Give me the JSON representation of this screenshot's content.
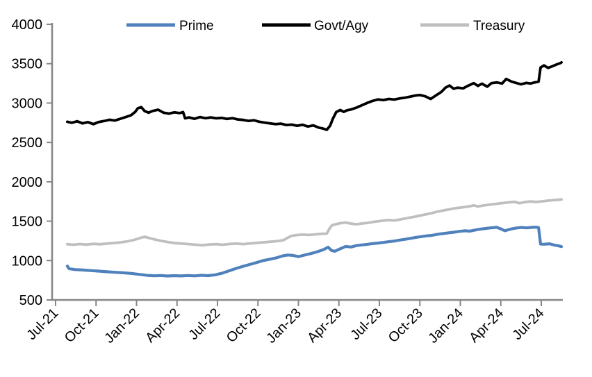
{
  "chart_data": {
    "type": "line",
    "title": "",
    "legend_position": "top",
    "grid": false,
    "axis_color": "#868686",
    "ylim": [
      500,
      4000
    ],
    "y_ticks": [
      500,
      1000,
      1500,
      2000,
      2500,
      3000,
      3500,
      4000
    ],
    "x_ticks": [
      {
        "t": 0,
        "label": "Jul-21"
      },
      {
        "t": 3,
        "label": "Oct-21"
      },
      {
        "t": 6,
        "label": "Jan-22"
      },
      {
        "t": 9,
        "label": "Apr-22"
      },
      {
        "t": 12,
        "label": "Jul-22"
      },
      {
        "t": 15,
        "label": "Oct-22"
      },
      {
        "t": 18,
        "label": "Jan-23"
      },
      {
        "t": 21,
        "label": "Apr-23"
      },
      {
        "t": 24,
        "label": "Jul-23"
      },
      {
        "t": 27,
        "label": "Oct-23"
      },
      {
        "t": 30,
        "label": "Jan-24"
      },
      {
        "t": 33,
        "label": "Apr-24"
      },
      {
        "t": 36,
        "label": "Jul-24"
      }
    ],
    "x_unit": "months since Jul-2021",
    "series": [
      {
        "name": "Prime",
        "color": "#4f81bd",
        "width": 4.2,
        "points": [
          [
            0.87,
            930
          ],
          [
            1.0,
            898
          ],
          [
            1.4,
            886
          ],
          [
            2.0,
            880
          ],
          [
            2.6,
            873
          ],
          [
            3.2,
            866
          ],
          [
            3.8,
            858
          ],
          [
            4.4,
            851
          ],
          [
            5.0,
            845
          ],
          [
            5.6,
            837
          ],
          [
            6.2,
            824
          ],
          [
            6.8,
            812
          ],
          [
            7.3,
            807
          ],
          [
            7.8,
            810
          ],
          [
            8.3,
            804
          ],
          [
            8.8,
            809
          ],
          [
            9.3,
            805
          ],
          [
            9.8,
            810
          ],
          [
            10.3,
            806
          ],
          [
            10.8,
            813
          ],
          [
            11.3,
            809
          ],
          [
            11.8,
            818
          ],
          [
            12.3,
            838
          ],
          [
            12.8,
            866
          ],
          [
            13.3,
            896
          ],
          [
            13.8,
            922
          ],
          [
            14.3,
            946
          ],
          [
            14.8,
            970
          ],
          [
            15.3,
            996
          ],
          [
            15.8,
            1014
          ],
          [
            16.3,
            1032
          ],
          [
            16.8,
            1058
          ],
          [
            17.2,
            1070
          ],
          [
            17.6,
            1065
          ],
          [
            18.0,
            1050
          ],
          [
            18.4,
            1068
          ],
          [
            18.9,
            1088
          ],
          [
            19.4,
            1112
          ],
          [
            19.9,
            1142
          ],
          [
            20.2,
            1170
          ],
          [
            20.45,
            1128
          ],
          [
            20.7,
            1118
          ],
          [
            21.1,
            1150
          ],
          [
            21.5,
            1180
          ],
          [
            21.9,
            1172
          ],
          [
            22.3,
            1190
          ],
          [
            22.7,
            1198
          ],
          [
            23.1,
            1206
          ],
          [
            23.5,
            1216
          ],
          [
            23.9,
            1222
          ],
          [
            24.3,
            1230
          ],
          [
            24.7,
            1240
          ],
          [
            25.1,
            1248
          ],
          [
            25.5,
            1260
          ],
          [
            25.9,
            1270
          ],
          [
            26.3,
            1282
          ],
          [
            26.7,
            1294
          ],
          [
            27.1,
            1304
          ],
          [
            27.5,
            1314
          ],
          [
            27.9,
            1320
          ],
          [
            28.3,
            1334
          ],
          [
            28.7,
            1342
          ],
          [
            29.1,
            1352
          ],
          [
            29.5,
            1360
          ],
          [
            29.9,
            1370
          ],
          [
            30.3,
            1378
          ],
          [
            30.7,
            1374
          ],
          [
            31.1,
            1388
          ],
          [
            31.5,
            1400
          ],
          [
            31.9,
            1408
          ],
          [
            32.3,
            1416
          ],
          [
            32.7,
            1422
          ],
          [
            33.0,
            1402
          ],
          [
            33.3,
            1378
          ],
          [
            33.7,
            1398
          ],
          [
            34.1,
            1412
          ],
          [
            34.5,
            1420
          ],
          [
            34.9,
            1415
          ],
          [
            35.3,
            1421
          ],
          [
            35.6,
            1424
          ],
          [
            35.8,
            1419
          ],
          [
            35.95,
            1210
          ],
          [
            36.2,
            1207
          ],
          [
            36.6,
            1213
          ],
          [
            37.0,
            1196
          ],
          [
            37.3,
            1186
          ],
          [
            37.5,
            1177
          ]
        ]
      },
      {
        "name": "Govt/Agy",
        "color": "#000000",
        "width": 3.8,
        "points": [
          [
            0.87,
            2762
          ],
          [
            1.2,
            2750
          ],
          [
            1.6,
            2768
          ],
          [
            2.0,
            2742
          ],
          [
            2.4,
            2758
          ],
          [
            2.8,
            2732
          ],
          [
            3.2,
            2760
          ],
          [
            3.6,
            2772
          ],
          [
            4.0,
            2788
          ],
          [
            4.4,
            2778
          ],
          [
            4.8,
            2800
          ],
          [
            5.2,
            2822
          ],
          [
            5.6,
            2846
          ],
          [
            5.9,
            2888
          ],
          [
            6.1,
            2934
          ],
          [
            6.35,
            2948
          ],
          [
            6.6,
            2898
          ],
          [
            6.9,
            2878
          ],
          [
            7.2,
            2900
          ],
          [
            7.6,
            2916
          ],
          [
            8.0,
            2878
          ],
          [
            8.4,
            2866
          ],
          [
            8.8,
            2882
          ],
          [
            9.2,
            2872
          ],
          [
            9.45,
            2886
          ],
          [
            9.6,
            2806
          ],
          [
            9.9,
            2818
          ],
          [
            10.3,
            2800
          ],
          [
            10.7,
            2822
          ],
          [
            11.1,
            2808
          ],
          [
            11.5,
            2818
          ],
          [
            11.9,
            2806
          ],
          [
            12.3,
            2812
          ],
          [
            12.7,
            2798
          ],
          [
            13.1,
            2808
          ],
          [
            13.5,
            2792
          ],
          [
            13.9,
            2786
          ],
          [
            14.3,
            2774
          ],
          [
            14.7,
            2782
          ],
          [
            15.1,
            2762
          ],
          [
            15.5,
            2752
          ],
          [
            15.9,
            2742
          ],
          [
            16.3,
            2732
          ],
          [
            16.7,
            2738
          ],
          [
            17.1,
            2722
          ],
          [
            17.5,
            2726
          ],
          [
            17.9,
            2712
          ],
          [
            18.3,
            2724
          ],
          [
            18.7,
            2702
          ],
          [
            19.1,
            2716
          ],
          [
            19.5,
            2688
          ],
          [
            19.8,
            2678
          ],
          [
            20.1,
            2660
          ],
          [
            20.35,
            2712
          ],
          [
            20.55,
            2800
          ],
          [
            20.8,
            2886
          ],
          [
            21.1,
            2912
          ],
          [
            21.35,
            2888
          ],
          [
            21.6,
            2908
          ],
          [
            21.9,
            2918
          ],
          [
            22.3,
            2942
          ],
          [
            22.7,
            2972
          ],
          [
            23.1,
            3002
          ],
          [
            23.5,
            3028
          ],
          [
            23.9,
            3046
          ],
          [
            24.3,
            3038
          ],
          [
            24.7,
            3052
          ],
          [
            25.1,
            3044
          ],
          [
            25.5,
            3058
          ],
          [
            25.9,
            3068
          ],
          [
            26.3,
            3082
          ],
          [
            26.7,
            3096
          ],
          [
            27.0,
            3102
          ],
          [
            27.4,
            3086
          ],
          [
            27.8,
            3052
          ],
          [
            28.2,
            3098
          ],
          [
            28.6,
            3142
          ],
          [
            28.9,
            3196
          ],
          [
            29.2,
            3222
          ],
          [
            29.5,
            3182
          ],
          [
            29.8,
            3196
          ],
          [
            30.2,
            3186
          ],
          [
            30.6,
            3222
          ],
          [
            31.0,
            3252
          ],
          [
            31.3,
            3218
          ],
          [
            31.6,
            3246
          ],
          [
            32.0,
            3208
          ],
          [
            32.3,
            3252
          ],
          [
            32.7,
            3262
          ],
          [
            33.1,
            3248
          ],
          [
            33.4,
            3306
          ],
          [
            33.8,
            3272
          ],
          [
            34.2,
            3252
          ],
          [
            34.5,
            3238
          ],
          [
            34.9,
            3256
          ],
          [
            35.2,
            3248
          ],
          [
            35.5,
            3262
          ],
          [
            35.8,
            3272
          ],
          [
            35.95,
            3452
          ],
          [
            36.2,
            3478
          ],
          [
            36.5,
            3446
          ],
          [
            36.8,
            3466
          ],
          [
            37.1,
            3488
          ],
          [
            37.4,
            3506
          ],
          [
            37.5,
            3516
          ]
        ]
      },
      {
        "name": "Treasury",
        "color": "#bfbfbf",
        "width": 3.8,
        "points": [
          [
            0.87,
            1208
          ],
          [
            1.3,
            1201
          ],
          [
            1.8,
            1210
          ],
          [
            2.3,
            1203
          ],
          [
            2.8,
            1212
          ],
          [
            3.3,
            1207
          ],
          [
            3.8,
            1215
          ],
          [
            4.3,
            1222
          ],
          [
            4.8,
            1231
          ],
          [
            5.3,
            1243
          ],
          [
            5.8,
            1261
          ],
          [
            6.3,
            1288
          ],
          [
            6.6,
            1302
          ],
          [
            6.9,
            1287
          ],
          [
            7.4,
            1266
          ],
          [
            7.9,
            1247
          ],
          [
            8.4,
            1233
          ],
          [
            8.9,
            1221
          ],
          [
            9.4,
            1215
          ],
          [
            9.9,
            1209
          ],
          [
            10.4,
            1201
          ],
          [
            10.9,
            1195
          ],
          [
            11.4,
            1204
          ],
          [
            11.9,
            1208
          ],
          [
            12.4,
            1201
          ],
          [
            12.9,
            1211
          ],
          [
            13.4,
            1216
          ],
          [
            13.9,
            1209
          ],
          [
            14.4,
            1217
          ],
          [
            14.9,
            1225
          ],
          [
            15.4,
            1231
          ],
          [
            15.9,
            1239
          ],
          [
            16.4,
            1246
          ],
          [
            16.9,
            1259
          ],
          [
            17.2,
            1290
          ],
          [
            17.5,
            1315
          ],
          [
            17.9,
            1324
          ],
          [
            18.3,
            1330
          ],
          [
            18.8,
            1325
          ],
          [
            19.3,
            1333
          ],
          [
            19.8,
            1340
          ],
          [
            20.1,
            1342
          ],
          [
            20.3,
            1405
          ],
          [
            20.5,
            1450
          ],
          [
            20.8,
            1462
          ],
          [
            21.1,
            1474
          ],
          [
            21.5,
            1483
          ],
          [
            21.9,
            1469
          ],
          [
            22.3,
            1461
          ],
          [
            22.7,
            1470
          ],
          [
            23.1,
            1478
          ],
          [
            23.5,
            1489
          ],
          [
            23.9,
            1499
          ],
          [
            24.3,
            1507
          ],
          [
            24.7,
            1515
          ],
          [
            25.1,
            1509
          ],
          [
            25.5,
            1521
          ],
          [
            25.9,
            1533
          ],
          [
            26.3,
            1547
          ],
          [
            26.7,
            1559
          ],
          [
            27.1,
            1575
          ],
          [
            27.5,
            1589
          ],
          [
            27.9,
            1603
          ],
          [
            28.3,
            1621
          ],
          [
            28.7,
            1635
          ],
          [
            29.1,
            1647
          ],
          [
            29.5,
            1661
          ],
          [
            29.9,
            1671
          ],
          [
            30.3,
            1679
          ],
          [
            30.7,
            1689
          ],
          [
            31.0,
            1701
          ],
          [
            31.3,
            1687
          ],
          [
            31.7,
            1699
          ],
          [
            32.1,
            1709
          ],
          [
            32.5,
            1717
          ],
          [
            32.9,
            1725
          ],
          [
            33.3,
            1733
          ],
          [
            33.7,
            1741
          ],
          [
            34.0,
            1747
          ],
          [
            34.4,
            1729
          ],
          [
            34.8,
            1743
          ],
          [
            35.2,
            1751
          ],
          [
            35.6,
            1745
          ],
          [
            36.0,
            1751
          ],
          [
            36.4,
            1759
          ],
          [
            36.8,
            1765
          ],
          [
            37.2,
            1771
          ],
          [
            37.5,
            1777
          ]
        ]
      }
    ]
  }
}
